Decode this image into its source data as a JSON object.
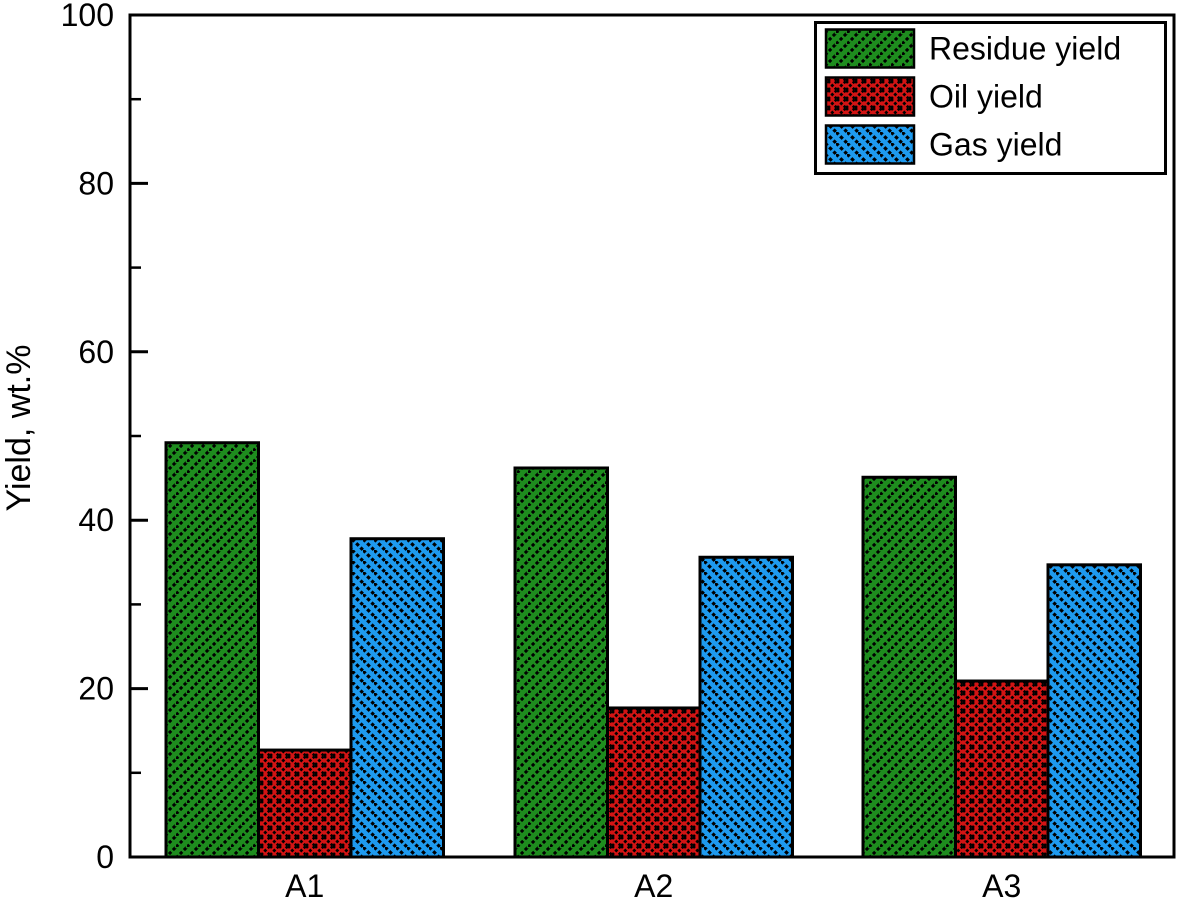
{
  "chart_data": {
    "type": "bar",
    "title": "",
    "xlabel": "",
    "ylabel": "Yield, wt.%",
    "categories": [
      "A1",
      "A2",
      "A3"
    ],
    "series": [
      {
        "name": "Residue yield",
        "color": "#1E8C1E",
        "hatch": "diagonal-forward",
        "values": [
          49.2,
          46.2,
          45.1
        ]
      },
      {
        "name": "Oil yield",
        "color": "#D21414",
        "hatch": "crosshatch",
        "values": [
          12.7,
          17.7,
          20.9
        ]
      },
      {
        "name": "Gas yield",
        "color": "#1E9AEF",
        "hatch": "diagonal-backward",
        "values": [
          37.8,
          35.6,
          34.7
        ]
      }
    ],
    "ylim": [
      0,
      100
    ],
    "yticks_major": [
      0,
      20,
      40,
      60,
      80,
      100
    ],
    "yticks_minor": [
      10,
      30,
      50,
      70,
      90
    ],
    "grid": false,
    "legend_position": "top-right",
    "bar_edge_color": "#000000",
    "frame_color": "#000000",
    "background_color": "#ffffff"
  }
}
